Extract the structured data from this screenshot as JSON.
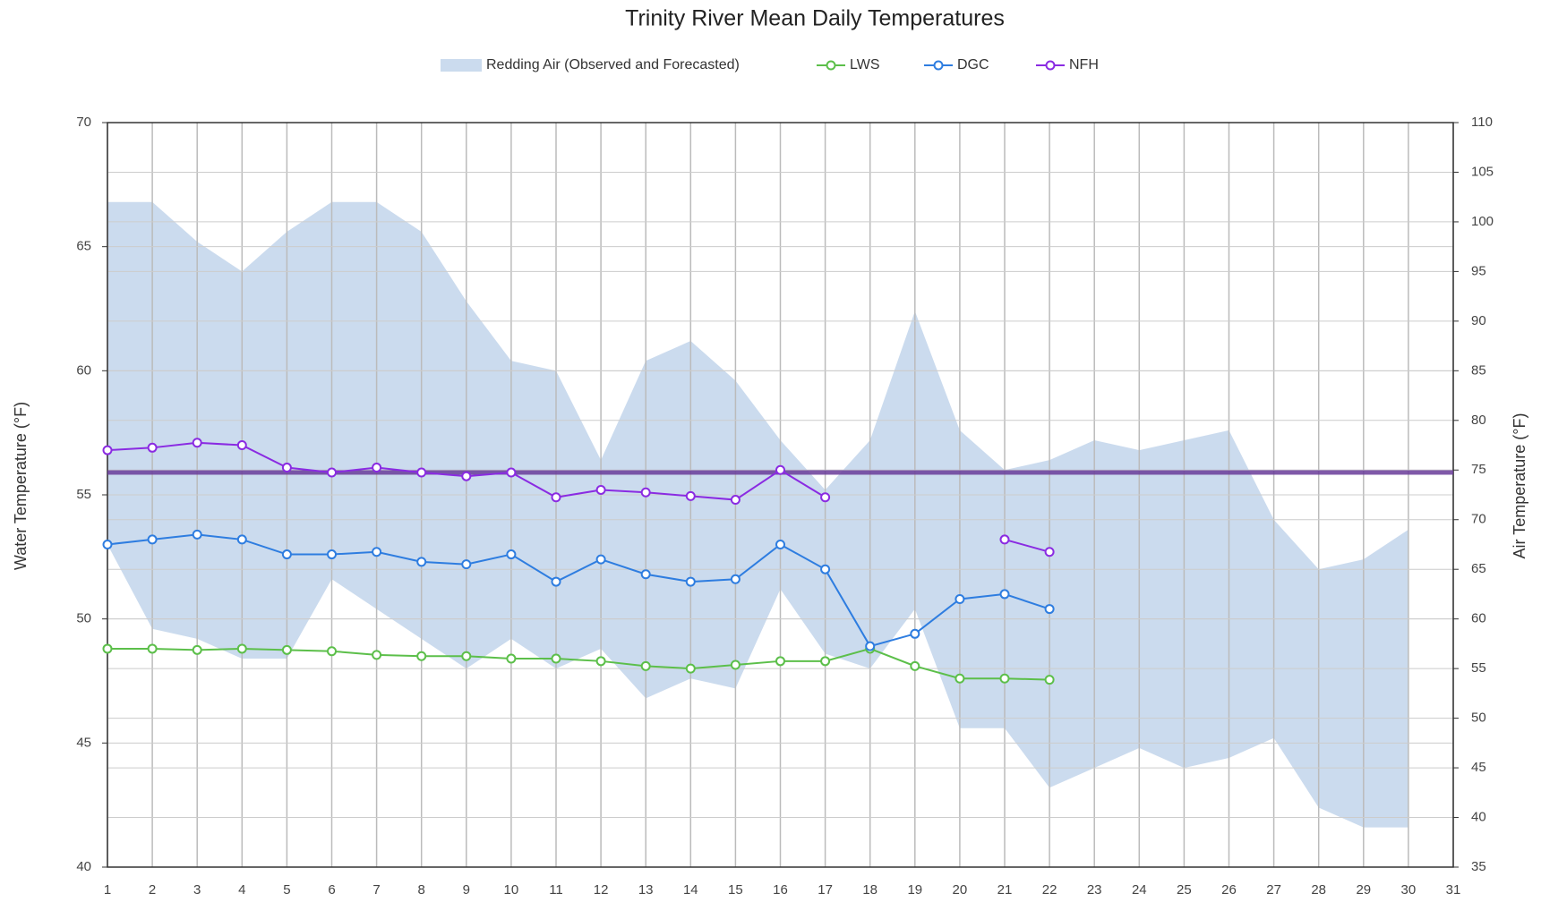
{
  "chart_data": {
    "type": "line",
    "title": "Trinity River Mean Daily Temperatures",
    "y_label": "Water Temperature (°F)",
    "y2_label": "Air Temperature (°F)",
    "x": [
      1,
      2,
      3,
      4,
      5,
      6,
      7,
      8,
      9,
      10,
      11,
      12,
      13,
      14,
      15,
      16,
      17,
      18,
      19,
      20,
      21,
      22,
      23,
      24,
      25,
      26,
      27,
      28,
      29,
      30,
      31
    ],
    "xlim": [
      1,
      31
    ],
    "xticks": [
      1,
      2,
      3,
      4,
      5,
      6,
      7,
      8,
      9,
      10,
      11,
      12,
      13,
      14,
      15,
      16,
      17,
      18,
      19,
      20,
      21,
      22,
      23,
      24,
      25,
      26,
      27,
      28,
      29,
      30,
      31
    ],
    "ylim": [
      40,
      70
    ],
    "yticks": [
      40,
      45,
      50,
      55,
      60,
      65,
      70
    ],
    "y2lim": [
      35,
      110
    ],
    "y2ticks": [
      35,
      40,
      45,
      50,
      55,
      60,
      65,
      70,
      75,
      80,
      85,
      90,
      95,
      100,
      105,
      110
    ],
    "grid": true,
    "area": {
      "name": "Redding Air (Observed and Forecasted)",
      "color": "#cbdbee",
      "axis": "y2",
      "upper": [
        102,
        102,
        98,
        95,
        99,
        102,
        102,
        99,
        92,
        86,
        85,
        76,
        86,
        88,
        84,
        78,
        73,
        78,
        91,
        79,
        75,
        76,
        78,
        77,
        78,
        79,
        70,
        65,
        66,
        69,
        null
      ],
      "lower": [
        67.5,
        59,
        58,
        56,
        56,
        64,
        61,
        58,
        55,
        58,
        55,
        57,
        52,
        54,
        53,
        63,
        56.5,
        55,
        61,
        49,
        49,
        43,
        45,
        47,
        45,
        46,
        48,
        41,
        39,
        39,
        null
      ]
    },
    "series": [
      {
        "name": "LWS",
        "color": "#5cbf4a",
        "values": [
          48.8,
          48.8,
          48.75,
          48.8,
          48.75,
          48.7,
          48.55,
          48.5,
          48.5,
          48.4,
          48.4,
          48.3,
          48.1,
          48.0,
          48.15,
          48.3,
          48.3,
          48.8,
          48.1,
          47.6,
          47.6,
          47.55,
          null,
          null,
          null,
          null,
          null,
          null,
          null,
          null,
          null
        ]
      },
      {
        "name": "DGC",
        "color": "#2e7de0",
        "values": [
          53.0,
          53.2,
          53.4,
          53.2,
          52.6,
          52.6,
          52.7,
          52.3,
          52.2,
          52.6,
          51.5,
          52.4,
          51.8,
          51.5,
          51.6,
          53.0,
          52.0,
          48.9,
          49.4,
          50.8,
          51.0,
          50.4,
          null,
          null,
          null,
          null,
          null,
          null,
          null,
          null,
          null
        ]
      },
      {
        "name": "NFH",
        "color": "#8a2be2",
        "values": [
          56.8,
          56.9,
          57.1,
          57.0,
          56.1,
          55.9,
          56.1,
          55.9,
          55.75,
          55.9,
          54.9,
          55.2,
          55.1,
          54.95,
          54.8,
          56.0,
          54.9,
          null,
          null,
          null,
          53.2,
          52.7,
          null,
          null,
          null,
          null,
          null,
          null,
          null,
          null,
          null
        ]
      }
    ],
    "reference_line": {
      "value": 55.9,
      "color": "#6a3d9a"
    }
  }
}
